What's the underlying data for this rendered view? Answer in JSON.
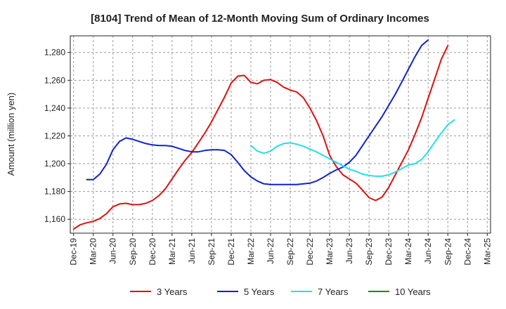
{
  "chart_data": {
    "type": "line",
    "title": "[8104]  Trend of Mean of 12-Month Moving Sum of Ordinary Incomes",
    "ylabel": "Amount (million yen)",
    "xlabel": "",
    "ylim": [
      1150,
      1292
    ],
    "yticks": [
      1160,
      1180,
      1200,
      1220,
      1240,
      1260,
      1280
    ],
    "ytick_labels": [
      "1,160",
      "1,180",
      "1,200",
      "1,220",
      "1,240",
      "1,260",
      "1,280"
    ],
    "x_start": "Dec-19",
    "x_count": 64,
    "xtick_indices": [
      0,
      3,
      6,
      9,
      12,
      15,
      18,
      21,
      24,
      27,
      30,
      33,
      36,
      39,
      42,
      45,
      48,
      51,
      54,
      57,
      60,
      63
    ],
    "xtick_labels": [
      "Dec-19",
      "Mar-20",
      "Jun-20",
      "Sep-20",
      "Dec-20",
      "Mar-21",
      "Jun-21",
      "Sep-21",
      "Dec-21",
      "Mar-22",
      "Jun-22",
      "Sep-22",
      "Dec-22",
      "Mar-23",
      "Jun-23",
      "Sep-23",
      "Dec-23",
      "Mar-24",
      "Jun-24",
      "Sep-24",
      "Dec-24",
      "Mar-25"
    ],
    "grid": true,
    "legend_position": "bottom",
    "series": [
      {
        "name": "3 Years",
        "color": "#dd1111",
        "start_index": 0,
        "values": [
          1153,
          1156,
          1157.5,
          1158.5,
          1160.5,
          1164,
          1169,
          1171,
          1171.5,
          1170.5,
          1170.5,
          1171.5,
          1173.5,
          1177,
          1182,
          1189,
          1196,
          1202.5,
          1208,
          1215,
          1222,
          1230,
          1239,
          1248,
          1258,
          1263,
          1263.5,
          1258.5,
          1257.5,
          1260,
          1260.5,
          1258.5,
          1255,
          1253,
          1251.5,
          1247.5,
          1240,
          1231,
          1220,
          1206,
          1198,
          1192,
          1189,
          1186,
          1181,
          1175.5,
          1173.5,
          1176,
          1183,
          1192,
          1201,
          1210,
          1221,
          1233,
          1247,
          1261,
          1275,
          1285
        ]
      },
      {
        "name": "5 Years",
        "color": "#1122cc",
        "start_index": 2,
        "values": [
          1188.5,
          1188.5,
          1192.5,
          1199.5,
          1210,
          1216,
          1218.5,
          1217.5,
          1216,
          1214.5,
          1213.5,
          1213,
          1213,
          1212.5,
          1211,
          1209.5,
          1208.5,
          1208.5,
          1209.5,
          1210,
          1210,
          1209.5,
          1206.5,
          1201,
          1195,
          1190.5,
          1187.5,
          1185.5,
          1185,
          1185,
          1185,
          1185,
          1185,
          1185.5,
          1186,
          1187.5,
          1190,
          1193,
          1195.5,
          1197.5,
          1201,
          1206,
          1213,
          1220,
          1227,
          1234,
          1242,
          1250,
          1259,
          1268,
          1277,
          1285,
          1289
        ]
      },
      {
        "name": "7 Years",
        "color": "#22e0e6",
        "start_index": 27,
        "values": [
          1213,
          1209,
          1207.5,
          1209,
          1212.5,
          1214.5,
          1215,
          1214,
          1212.5,
          1210.5,
          1208.5,
          1206,
          1203.5,
          1201,
          1198.5,
          1196,
          1194.5,
          1192.5,
          1191.5,
          1191,
          1191,
          1192,
          1194,
          1196.5,
          1199,
          1200,
          1203,
          1208.5,
          1215.5,
          1222,
          1228,
          1231.5
        ]
      },
      {
        "name": "10 Years",
        "color": "#1a8a1a",
        "start_index": 0,
        "values": []
      }
    ]
  }
}
